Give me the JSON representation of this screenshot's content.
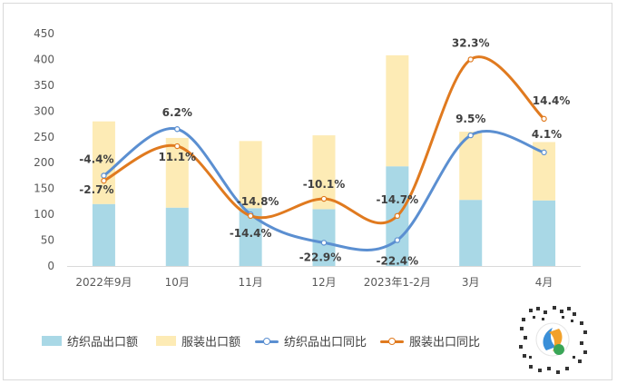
{
  "chart_data": {
    "type": "bar",
    "categories": [
      "2022年9月",
      "10月",
      "11月",
      "12月",
      "2023年1-2月",
      "3月",
      "4月"
    ],
    "ylim": [
      0,
      450
    ],
    "yticks": [
      0,
      50,
      100,
      150,
      200,
      250,
      300,
      350,
      400,
      450
    ],
    "grid": false,
    "legend_position": "bottom",
    "series": [
      {
        "name": "纺织品出口额",
        "type": "bar",
        "values": [
          120,
          113,
          112,
          110,
          193,
          128,
          127
        ]
      },
      {
        "name": "服装出口额",
        "type": "bar",
        "values": [
          160,
          135,
          130,
          143,
          215,
          132,
          113
        ]
      },
      {
        "name": "纺织品出口同比",
        "type": "line",
        "values": [
          175,
          265,
          100,
          45,
          50,
          253,
          220
        ]
      },
      {
        "name": "服装出口同比",
        "type": "line",
        "values": [
          165,
          232,
          97,
          130,
          97,
          400,
          285
        ]
      }
    ],
    "data_labels": [
      {
        "series": "纺织品出口同比",
        "texts": [
          "-4.4%",
          "6.2%",
          "-14.4%",
          "-22.9%",
          "-22.4%",
          "9.5%",
          "4.1%"
        ]
      },
      {
        "series": "服装出口同比",
        "texts": [
          "-2.7%",
          "11.1%",
          "-14.8%",
          "-10.1%",
          "-14.7%",
          "32.3%",
          "14.4%"
        ]
      }
    ],
    "colors": {
      "textile_bar": "#a9d8e6",
      "apparel_bar": "#fdebb5",
      "textile_line": "#5b8fd1",
      "apparel_line": "#e07a1f"
    }
  },
  "qr_icon": "qr-code-icon"
}
